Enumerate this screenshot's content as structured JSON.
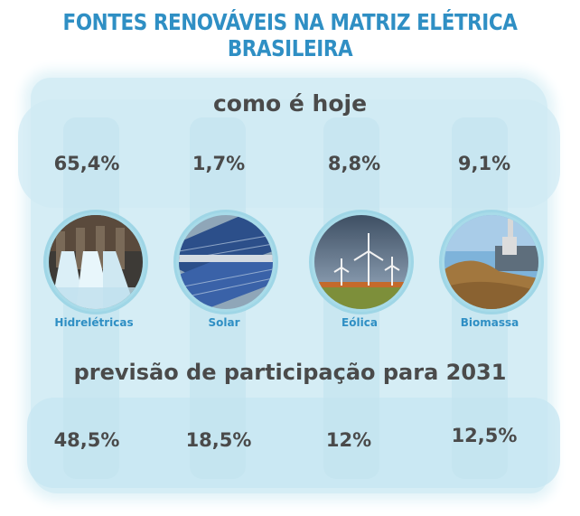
{
  "header": {
    "title": "FONTES RENOVÁVEIS NA MATRIZ ELÉTRICA BRASILEIRA"
  },
  "sections": {
    "today_heading": "como é hoje",
    "forecast_heading": "previsão de participação para 2031"
  },
  "sources": [
    {
      "label": "Hidrelétricas",
      "today": "65,4%",
      "forecast": "48,5%",
      "icon": "hydro-dam-photo"
    },
    {
      "label": "Solar",
      "today": "1,7%",
      "forecast": "18,5%",
      "icon": "solar-panels-photo"
    },
    {
      "label": "Eólica",
      "today": "8,8%",
      "forecast": "12%",
      "icon": "wind-turbines-photo"
    },
    {
      "label": "Biomassa",
      "today": "9,1%",
      "forecast": "12,5%",
      "icon": "biomass-plant-photo"
    }
  ],
  "colors": {
    "title": "#2f8fc4",
    "text": "#4a4a4a",
    "wash": "#d5edf5",
    "label": "#2f8fc4"
  }
}
